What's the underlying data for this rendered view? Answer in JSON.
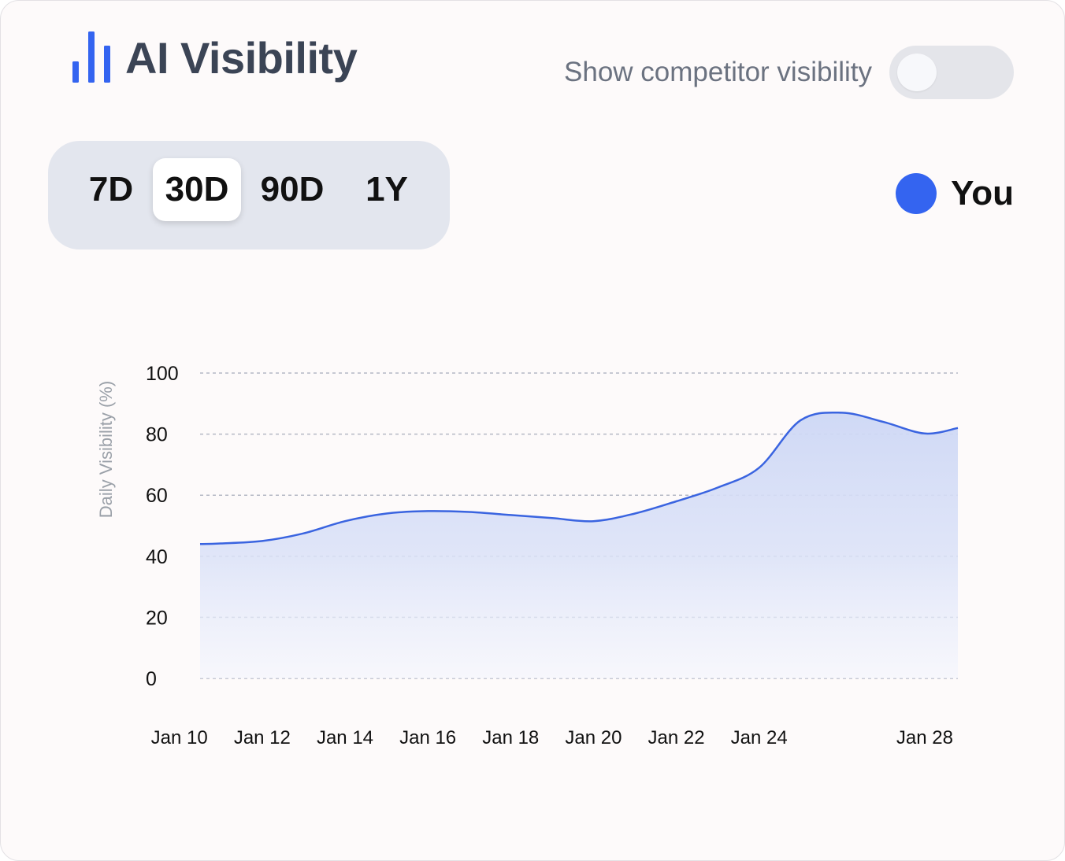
{
  "header": {
    "title": "AI Visibility",
    "title_icon": "bar-chart-icon",
    "competitor_toggle": {
      "label": "Show competitor visibility",
      "on": false
    }
  },
  "range_selector": {
    "options": [
      "7D",
      "30D",
      "90D",
      "1Y"
    ],
    "selected": "30D"
  },
  "legend": {
    "label": "You",
    "color": "#3464f0"
  },
  "colors": {
    "accent": "#3464f0",
    "line": "#3a64e0",
    "fill": "#d3dcf6",
    "grid": "#b4b8c4"
  },
  "chart_data": {
    "type": "area",
    "title": "",
    "xlabel": "",
    "ylabel": "Daily Visibility (%)",
    "ylim": [
      0,
      100
    ],
    "yticks": [
      0,
      20,
      40,
      60,
      80,
      100
    ],
    "x_tick_labels": [
      {
        "label": "Jan 10",
        "day": 10
      },
      {
        "label": "Jan 12",
        "day": 12
      },
      {
        "label": "Jan 14",
        "day": 14
      },
      {
        "label": "Jan 16",
        "day": 16
      },
      {
        "label": "Jan 18",
        "day": 18
      },
      {
        "label": "Jan 20",
        "day": 20
      },
      {
        "label": "Jan 22",
        "day": 22
      },
      {
        "label": "Jan 24",
        "day": 24
      },
      {
        "label": "Jan 28",
        "day": 28
      }
    ],
    "x": [
      10.5,
      11,
      12,
      13,
      14,
      15,
      16,
      17,
      18,
      19,
      20,
      21,
      22,
      23,
      24,
      25,
      26,
      27,
      28,
      28.8
    ],
    "series": [
      {
        "name": "You",
        "values": [
          44,
          44.2,
          45,
          47.5,
          51.5,
          54,
          54.8,
          54.5,
          53.5,
          52.5,
          51.5,
          54,
          58,
          62.5,
          69,
          84.5,
          87,
          84,
          80.2,
          82
        ]
      }
    ]
  }
}
